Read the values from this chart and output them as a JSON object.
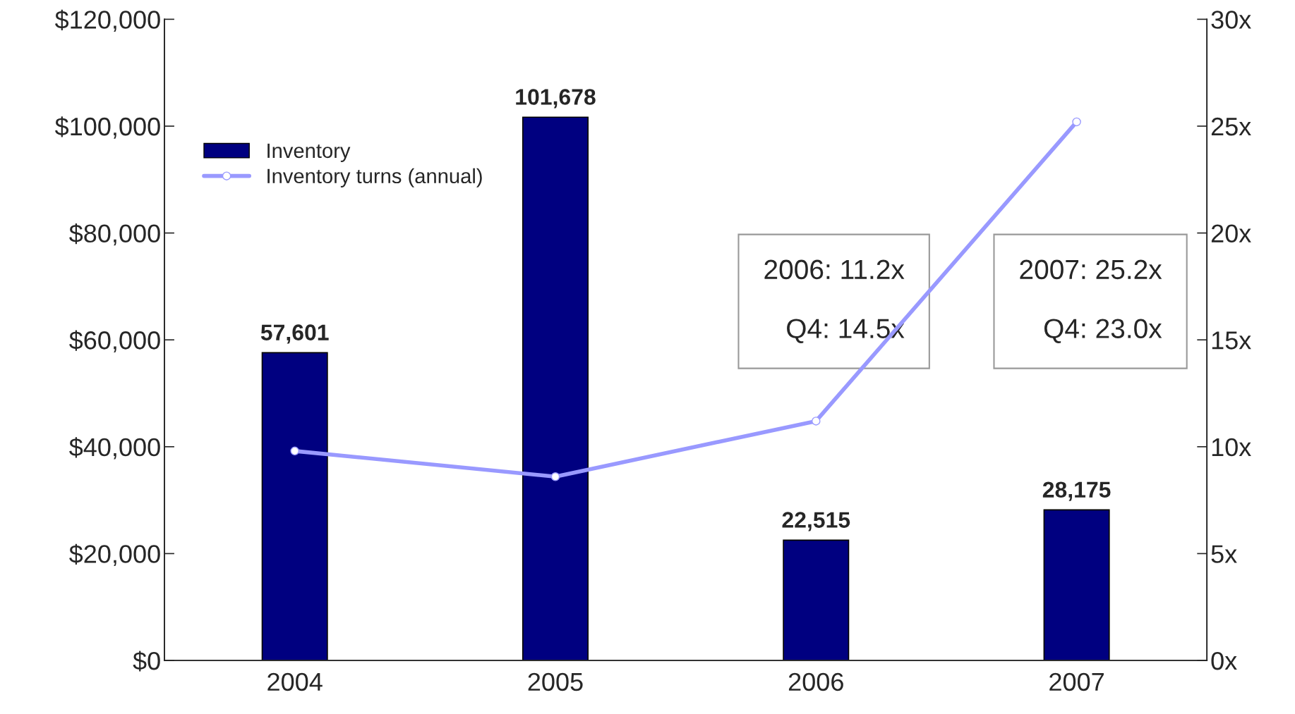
{
  "chart_data": {
    "type": "bar",
    "categories": [
      "2004",
      "2005",
      "2006",
      "2007"
    ],
    "series": [
      {
        "name": "Inventory",
        "color": "#000080",
        "values": [
          57601,
          101678,
          22515,
          28175
        ],
        "value_labels": [
          "57,601",
          "101,678",
          "22,515",
          "28,175"
        ]
      },
      {
        "name": "Inventory turns (annual)",
        "type": "line",
        "axis": "y2",
        "color": "#9999ff",
        "marker": "circle",
        "values": [
          9.8,
          8.6,
          11.2,
          25.2
        ]
      }
    ],
    "ylim": [
      0,
      120000
    ],
    "yticks": [
      {
        "value": 0,
        "label": "$0"
      },
      {
        "value": 20000,
        "label": "$20,000"
      },
      {
        "value": 40000,
        "label": "$40,000"
      },
      {
        "value": 60000,
        "label": "$60,000"
      },
      {
        "value": 80000,
        "label": "$80,000"
      },
      {
        "value": 100000,
        "label": "$100,000"
      },
      {
        "value": 120000,
        "label": "$120,000"
      }
    ],
    "y2lim": [
      0,
      30
    ],
    "y2ticks": [
      {
        "value": 0,
        "label": "0x"
      },
      {
        "value": 5,
        "label": "5x"
      },
      {
        "value": 10,
        "label": "10x"
      },
      {
        "value": 15,
        "label": "15x"
      },
      {
        "value": 20,
        "label": "20x"
      },
      {
        "value": 25,
        "label": "25x"
      },
      {
        "value": 30,
        "label": "30x"
      }
    ],
    "annotations": [
      "2006: 11.2x\n\nQ4: 14.5x",
      "2007: 25.2x\n\nQ4: 23.0x"
    ],
    "legend": "top left",
    "grid": false
  }
}
